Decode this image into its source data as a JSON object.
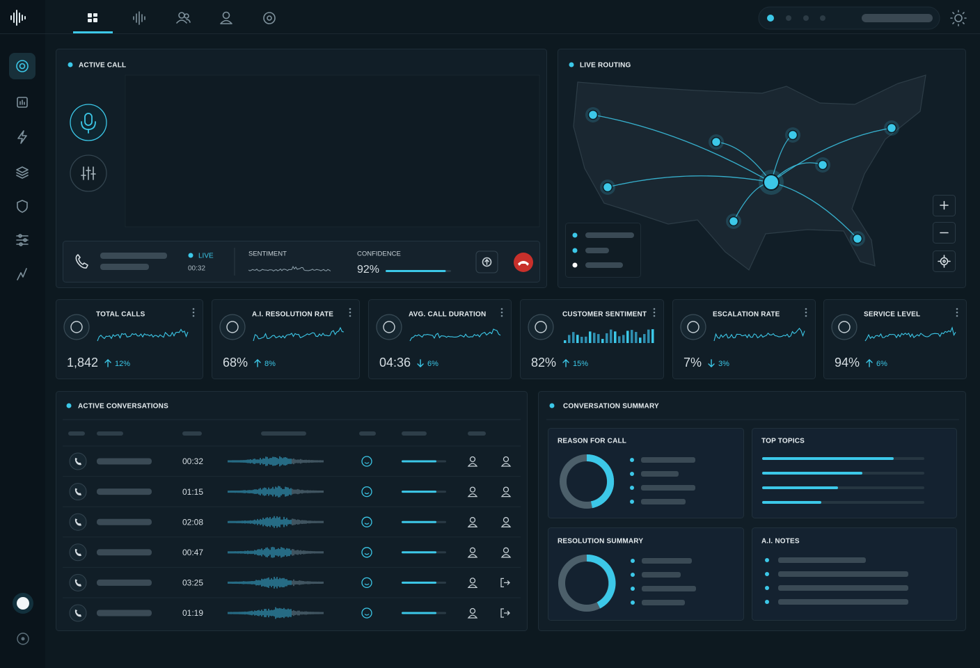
{
  "active_call": {
    "title": "ACTIVE CALL",
    "status": "LIVE",
    "time": "00:32",
    "sentiment_label": "SENTIMENT",
    "confidence": {
      "label": "CONFIDENCE",
      "value": 92,
      "value_label": "92%"
    }
  },
  "live_routing": {
    "title": "LIVE ROUTING"
  },
  "kpis": {
    "items": [
      {
        "title": "TOTAL CALLS",
        "value": "1,842",
        "change": "12%",
        "direction": "up",
        "trend": "line"
      },
      {
        "title": "A.I. RESOLUTION RATE",
        "value": "68%",
        "change": "8%",
        "direction": "up",
        "trend": "line"
      },
      {
        "title": "AVG. CALL DURATION",
        "value": "04:36",
        "change": "6%",
        "direction": "down",
        "trend": "line"
      },
      {
        "title": "CUSTOMER SENTIMENT",
        "value": "82%",
        "change": "15%",
        "direction": "up",
        "trend": "bars"
      },
      {
        "title": "ESCALATION RATE",
        "value": "7%",
        "change": "3%",
        "direction": "down",
        "trend": "line"
      },
      {
        "title": "SERVICE LEVEL",
        "value": "94%",
        "change": "6%",
        "direction": "up",
        "trend": "line"
      }
    ]
  },
  "active_conversations": {
    "title": "ACTIVE CONVERSATIONS",
    "rows": [
      {
        "duration": "00:32"
      },
      {
        "duration": "01:15"
      },
      {
        "duration": "02:08"
      },
      {
        "duration": "00:47"
      },
      {
        "duration": "03:25"
      },
      {
        "duration": "01:19"
      }
    ]
  },
  "conversation_summary": {
    "title": "CONVERSATION SUMMARY",
    "reason_for_call": "REASON FOR CALL",
    "top_topics": "TOP TOPICS",
    "resolution_summary": "RESOLUTION SUMMARY",
    "ai_notes": "A.I. NOTES"
  }
}
